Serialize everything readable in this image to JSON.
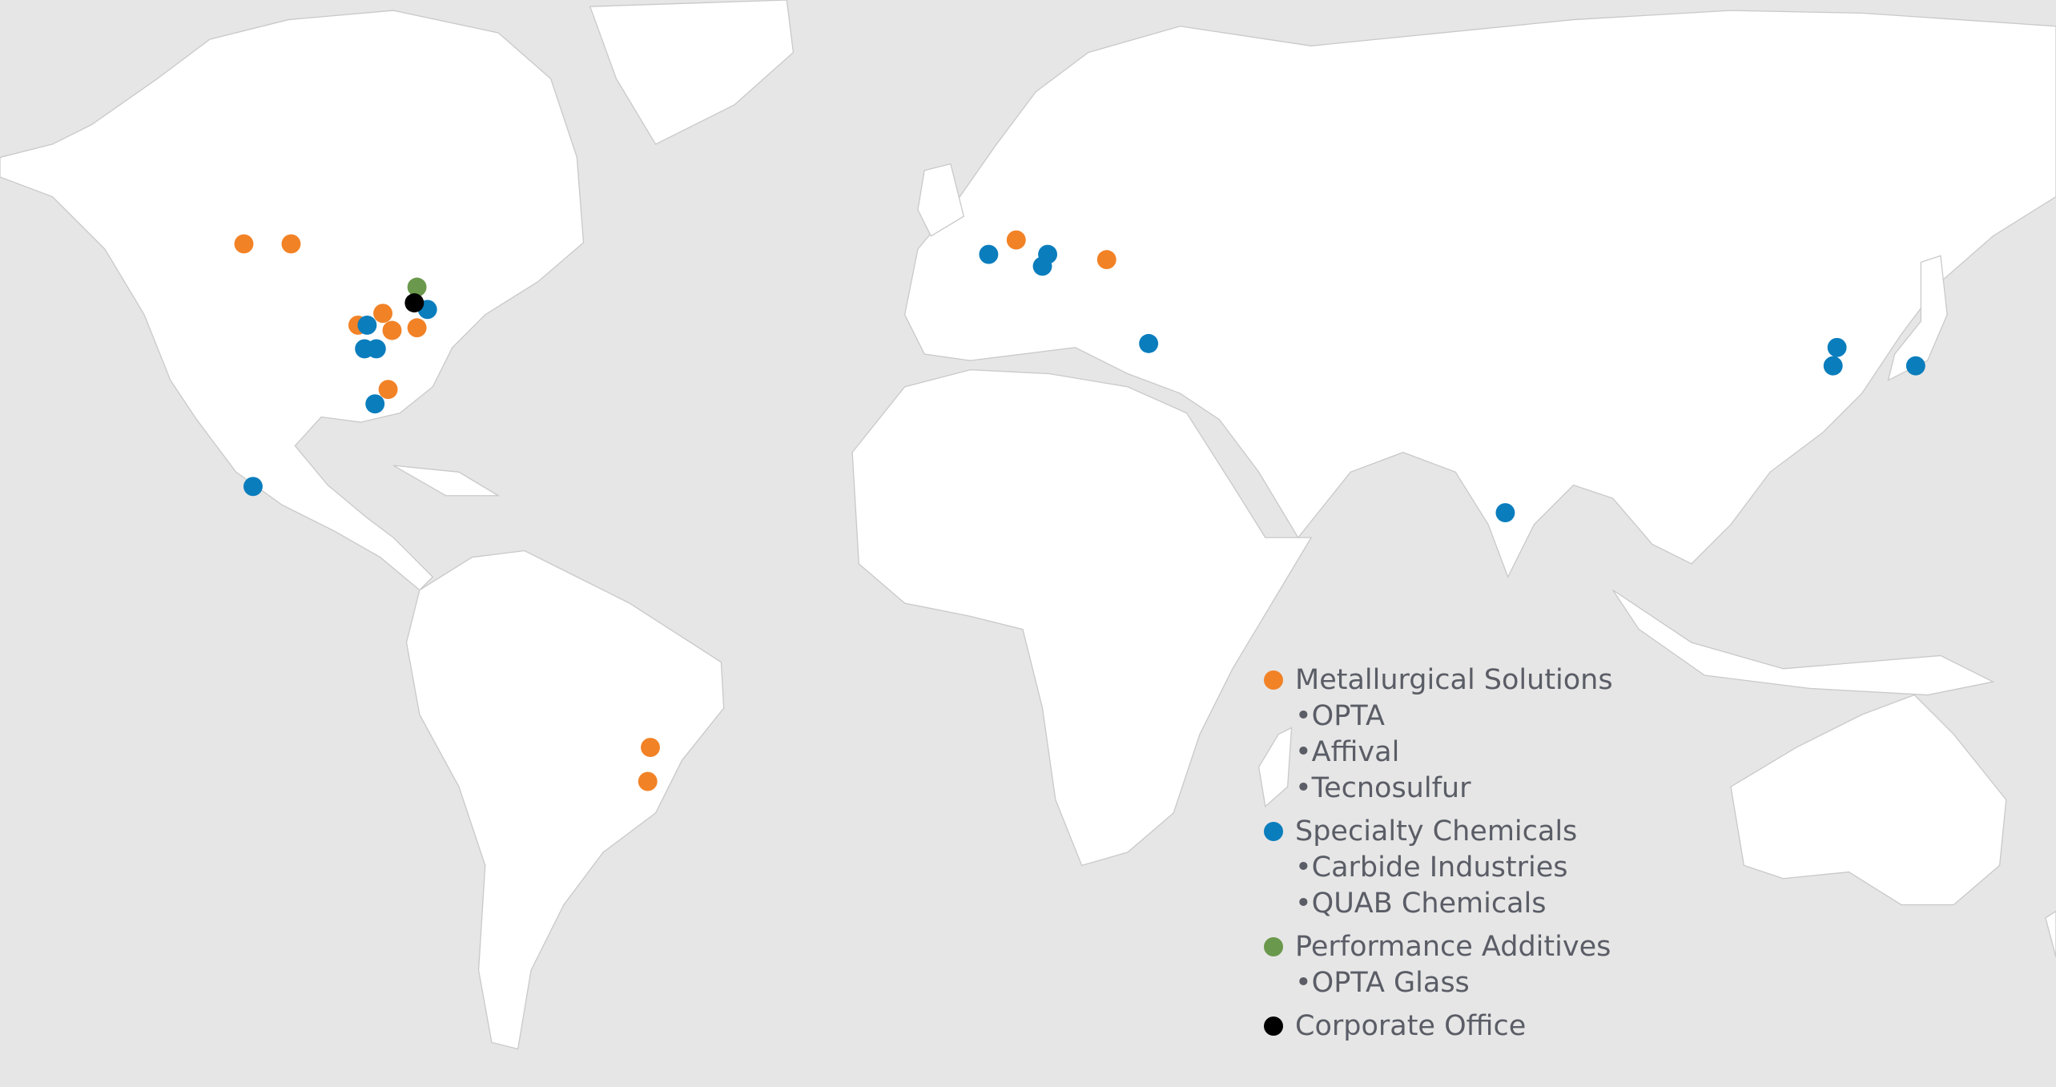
{
  "legend": [
    {
      "label": "Metallurgical Solutions",
      "color": "#f28226",
      "items": [
        "•OPTA",
        "•Affival",
        "•Tecnosulfur"
      ]
    },
    {
      "label": "Specialty Chemicals",
      "color": "#0a7dbd",
      "items": [
        "•Carbide Industries",
        "•QUAB Chemicals"
      ]
    },
    {
      "label": "Performance Additives",
      "color": "#6a984c",
      "items": [
        "•OPTA Glass"
      ]
    },
    {
      "label": "Corporate Office",
      "color": "#000000",
      "items": []
    }
  ],
  "colors": {
    "background": "#e6e6e6",
    "land": "#ffffff",
    "text": "#5a5d66"
  },
  "locations_by_segment": {
    "Metallurgical Solutions": 11,
    "Specialty Chemicals": 14,
    "Performance Additives": 1,
    "Corporate Office": 1
  }
}
